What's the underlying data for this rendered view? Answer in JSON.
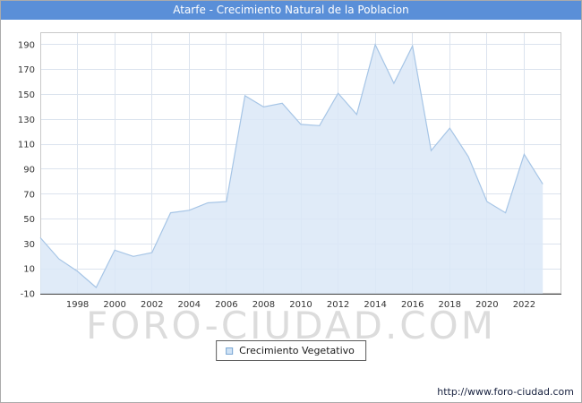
{
  "title": "Atarfe - Crecimiento Natural de la Poblacion",
  "watermark": "FORO-CIUDAD.COM",
  "legend": {
    "label": "Crecimiento Vegetativo"
  },
  "footer": {
    "link": "http://www.foro-ciudad.com"
  },
  "colors": {
    "header_bg": "#5a8fd8",
    "area_fill": "#dae8f7",
    "area_line": "#a6c5e6",
    "grid": "#dbe3ee",
    "plot_border": "#c9c9c9",
    "axis": "#444444",
    "tick_text": "#333333",
    "legend_swatch_fill": "#cfe2f5",
    "legend_swatch_border": "#7aa7d4"
  },
  "chart_data": {
    "type": "area",
    "title": "Atarfe - Crecimiento Natural de la Poblacion",
    "xlabel": "",
    "ylabel": "",
    "xlim": [
      1996,
      2024
    ],
    "ylim": [
      -10,
      200
    ],
    "xticks": [
      1998,
      2000,
      2002,
      2004,
      2006,
      2008,
      2010,
      2012,
      2014,
      2016,
      2018,
      2020,
      2022
    ],
    "yticks": [
      -10,
      10,
      30,
      50,
      70,
      90,
      110,
      130,
      150,
      170,
      190
    ],
    "grid": true,
    "legend_position": "bottom",
    "series": [
      {
        "name": "Crecimiento Vegetativo",
        "x": [
          1996,
          1997,
          1998,
          1999,
          2000,
          2001,
          2002,
          2003,
          2004,
          2005,
          2006,
          2007,
          2008,
          2009,
          2010,
          2011,
          2012,
          2013,
          2014,
          2015,
          2016,
          2017,
          2018,
          2019,
          2020,
          2021,
          2022,
          2023
        ],
        "values": [
          35,
          18,
          8,
          -5,
          25,
          20,
          23,
          55,
          57,
          63,
          64,
          149,
          140,
          143,
          126,
          125,
          151,
          134,
          190,
          159,
          189,
          105,
          123,
          100,
          64,
          55,
          102,
          78
        ]
      }
    ]
  }
}
